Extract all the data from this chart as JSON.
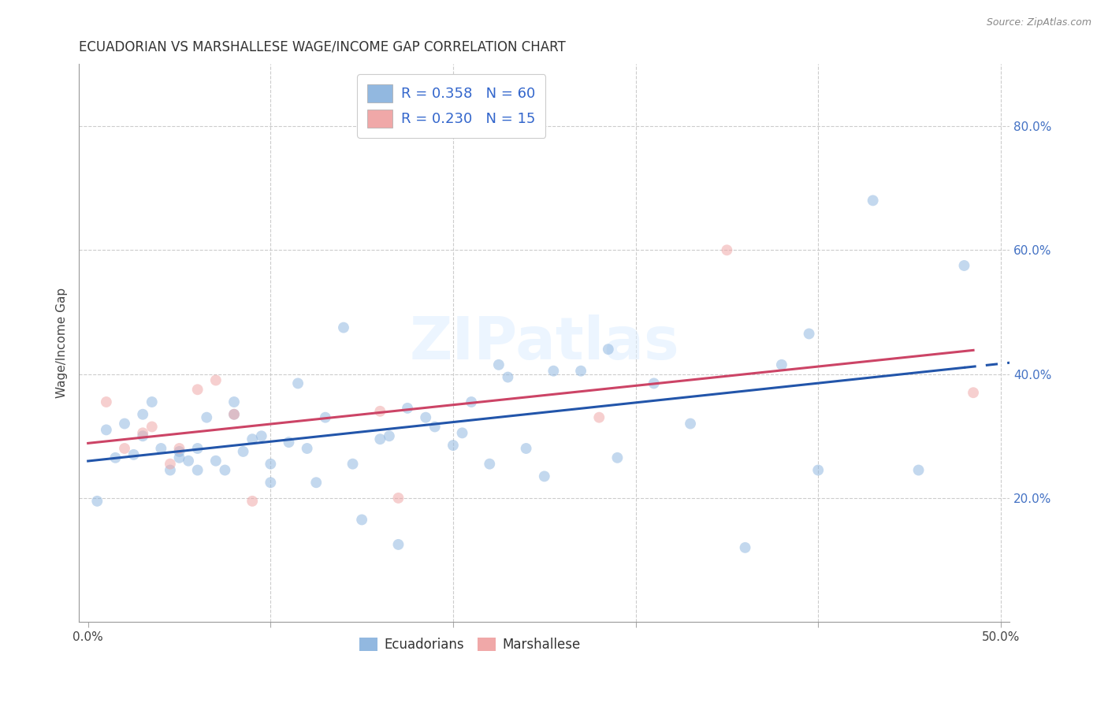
{
  "title": "ECUADORIAN VS MARSHALLESE WAGE/INCOME GAP CORRELATION CHART",
  "source": "Source: ZipAtlas.com",
  "ylabel": "Wage/Income Gap",
  "xlim": [
    -0.005,
    0.505
  ],
  "ylim": [
    0.0,
    0.9
  ],
  "xticks": [
    0.0,
    0.1,
    0.2,
    0.3,
    0.4,
    0.5
  ],
  "xticklabels": [
    "0.0%",
    "",
    "",
    "",
    "",
    "50.0%"
  ],
  "yticks_right": [
    0.2,
    0.4,
    0.6,
    0.8
  ],
  "ytick_labels_right": [
    "20.0%",
    "40.0%",
    "60.0%",
    "80.0%"
  ],
  "grid_color": "#cccccc",
  "background_color": "#ffffff",
  "blue_color": "#92b8e0",
  "pink_color": "#f0a8a8",
  "blue_line_color": "#2255aa",
  "pink_line_color": "#cc4466",
  "legend_R1": "R = 0.358",
  "legend_N1": "N = 60",
  "legend_R2": "R = 0.230",
  "legend_N2": "N = 15",
  "watermark": "ZIPatlas",
  "ecuadorians_x": [
    0.005,
    0.01,
    0.015,
    0.02,
    0.025,
    0.03,
    0.03,
    0.035,
    0.04,
    0.045,
    0.05,
    0.05,
    0.055,
    0.06,
    0.06,
    0.065,
    0.07,
    0.075,
    0.08,
    0.08,
    0.085,
    0.09,
    0.095,
    0.1,
    0.1,
    0.11,
    0.115,
    0.12,
    0.125,
    0.13,
    0.14,
    0.145,
    0.15,
    0.16,
    0.165,
    0.17,
    0.175,
    0.185,
    0.19,
    0.2,
    0.205,
    0.21,
    0.22,
    0.225,
    0.23,
    0.24,
    0.25,
    0.255,
    0.27,
    0.285,
    0.29,
    0.31,
    0.33,
    0.36,
    0.38,
    0.395,
    0.4,
    0.43,
    0.455,
    0.48
  ],
  "ecuadorians_y": [
    0.195,
    0.31,
    0.265,
    0.32,
    0.27,
    0.335,
    0.3,
    0.355,
    0.28,
    0.245,
    0.265,
    0.275,
    0.26,
    0.245,
    0.28,
    0.33,
    0.26,
    0.245,
    0.355,
    0.335,
    0.275,
    0.295,
    0.3,
    0.255,
    0.225,
    0.29,
    0.385,
    0.28,
    0.225,
    0.33,
    0.475,
    0.255,
    0.165,
    0.295,
    0.3,
    0.125,
    0.345,
    0.33,
    0.315,
    0.285,
    0.305,
    0.355,
    0.255,
    0.415,
    0.395,
    0.28,
    0.235,
    0.405,
    0.405,
    0.44,
    0.265,
    0.385,
    0.32,
    0.12,
    0.415,
    0.465,
    0.245,
    0.68,
    0.245,
    0.575
  ],
  "marshallese_x": [
    0.01,
    0.02,
    0.03,
    0.035,
    0.045,
    0.05,
    0.06,
    0.07,
    0.08,
    0.09,
    0.16,
    0.17,
    0.28,
    0.35,
    0.485
  ],
  "marshallese_y": [
    0.355,
    0.28,
    0.305,
    0.315,
    0.255,
    0.28,
    0.375,
    0.39,
    0.335,
    0.195,
    0.34,
    0.2,
    0.33,
    0.6,
    0.37
  ],
  "marker_size": 100,
  "marker_alpha": 0.55,
  "line_width": 2.2
}
